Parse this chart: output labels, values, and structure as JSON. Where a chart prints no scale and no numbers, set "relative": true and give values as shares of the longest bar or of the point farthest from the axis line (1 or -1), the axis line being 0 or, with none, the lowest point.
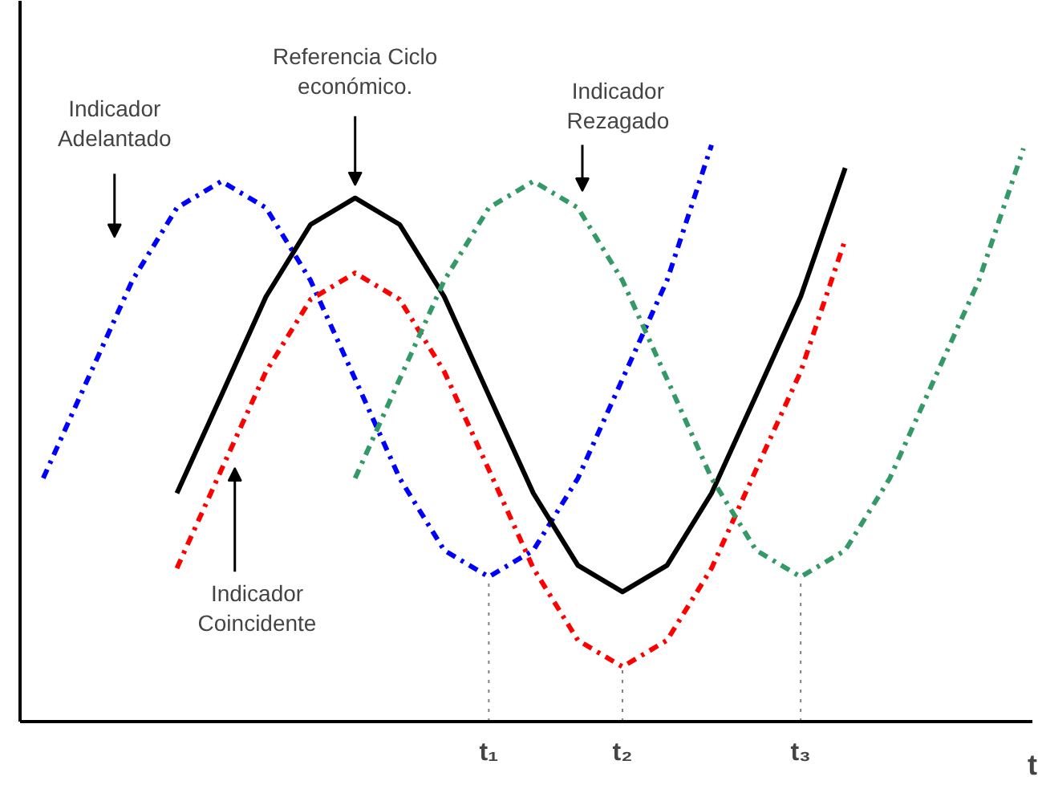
{
  "chart_data": {
    "type": "line",
    "relative": true,
    "xlabel": "t",
    "categories": [
      null,
      null,
      null,
      null,
      null,
      null,
      null,
      null,
      null,
      null,
      "t₁",
      null,
      null,
      "t₂",
      null,
      null,
      null,
      "t₃",
      null,
      null,
      null,
      null,
      null
    ],
    "grid": false,
    "marker": "none",
    "series": [
      {
        "color": "#0000ff",
        "line_style": "dashdot",
        "values": [
          0.422,
          0.594,
          0.765,
          0.891,
          0.937,
          0.891,
          0.765,
          0.594,
          0.422,
          0.297,
          0.251,
          0.297,
          0.422,
          0.594,
          0.765,
          1.0,
          null,
          null,
          null,
          null,
          null,
          null,
          null
        ]
      },
      {
        "color": "#ff0000",
        "line_style": "dashdot",
        "values": [
          null,
          null,
          null,
          0.266,
          0.437,
          0.607,
          0.732,
          0.778,
          0.732,
          0.607,
          0.437,
          0.266,
          0.141,
          0.095,
          0.141,
          0.266,
          0.437,
          0.607,
          0.836,
          null,
          null,
          null,
          null
        ]
      },
      {
        "color": "#000000",
        "line_style": "solid",
        "values": [
          null,
          null,
          null,
          0.396,
          0.566,
          0.737,
          0.862,
          0.908,
          0.862,
          0.737,
          0.566,
          0.396,
          0.271,
          0.225,
          0.271,
          0.396,
          0.566,
          0.737,
          0.96,
          null,
          null,
          null,
          null
        ]
      },
      {
        "color": "#339966",
        "line_style": "dashdot",
        "values": [
          null,
          null,
          null,
          null,
          null,
          null,
          null,
          0.422,
          0.594,
          0.765,
          0.891,
          0.937,
          0.891,
          0.765,
          0.594,
          0.422,
          0.297,
          0.251,
          0.297,
          0.422,
          0.594,
          0.765,
          0.994
        ]
      }
    ],
    "ref_lines": [
      {
        "axis": "x",
        "value": "t₁",
        "color": "#808080",
        "line_style": "dotted"
      },
      {
        "axis": "x",
        "value": "t₂",
        "color": "#808080",
        "line_style": "dotted"
      },
      {
        "axis": "x",
        "value": "t₃",
        "color": "#808080",
        "line_style": "dotted"
      }
    ],
    "annotations": [
      "Indicador\nAdelantado",
      "Referencia Ciclo\neconómico.",
      "Indicador\nRezagado",
      "Indicador\nCoincidente"
    ]
  }
}
